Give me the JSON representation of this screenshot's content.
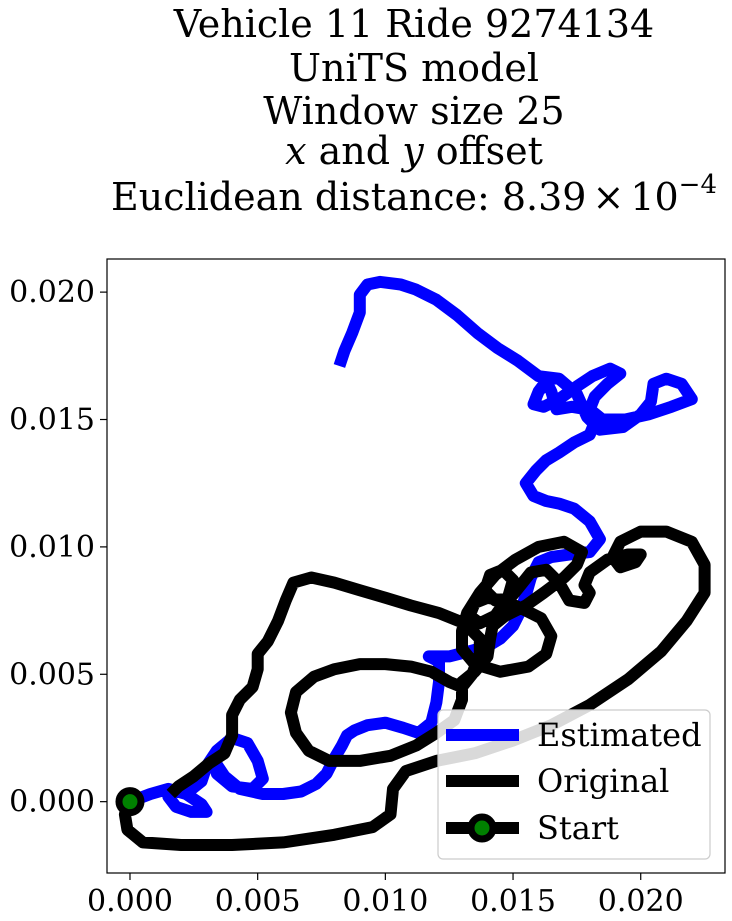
{
  "chart_data": {
    "type": "line",
    "title_lines": [
      "Vehicle 11 Ride 9274134",
      "UniTS model",
      "Window size 25",
      "x and y offset",
      "Euclidean distance: 8.39 × 10⁻⁴"
    ],
    "title_math": {
      "line4": {
        "var1": "x",
        "mid": " and ",
        "var2": "y",
        "tail": " offset"
      },
      "line5": {
        "prefix": "Euclidean distance: ",
        "mantissa": "8.39",
        "times": "×",
        "base": "10",
        "exponent": "−4"
      }
    },
    "xlabel": "",
    "ylabel": "",
    "xlim": [
      -0.0009,
      0.0233
    ],
    "ylim": [
      -0.0028,
      0.0213
    ],
    "x_ticks": [
      0.0,
      0.005,
      0.01,
      0.015,
      0.02
    ],
    "x_tick_labels": [
      "0.000",
      "0.005",
      "0.010",
      "0.015",
      "0.020"
    ],
    "y_ticks": [
      0.0,
      0.005,
      0.01,
      0.015,
      0.02
    ],
    "y_tick_labels": [
      "0.000",
      "0.005",
      "0.010",
      "0.015",
      "0.020"
    ],
    "grid": false,
    "legend_position": "bottom-right",
    "series": [
      {
        "name": "Estimated",
        "color": "#0000ff",
        "points": [
          [
            0.0,
            0.0
          ],
          [
            0.0008,
            0.0003
          ],
          [
            0.0015,
            0.0005
          ],
          [
            0.0022,
            0.0003
          ],
          [
            0.0028,
            -0.0001
          ],
          [
            0.003,
            -0.0004
          ],
          [
            0.0024,
            -0.0004
          ],
          [
            0.0018,
            -0.0002
          ],
          [
            0.0015,
            0.0002
          ],
          [
            0.0018,
            0.0004
          ],
          [
            0.0023,
            0.0004
          ],
          [
            0.0028,
            0.0008
          ],
          [
            0.003,
            0.0014
          ],
          [
            0.0034,
            0.002
          ],
          [
            0.004,
            0.0025
          ],
          [
            0.0046,
            0.0023
          ],
          [
            0.005,
            0.0016
          ],
          [
            0.0052,
            0.0009
          ],
          [
            0.0048,
            0.0005
          ],
          [
            0.004,
            0.0006
          ],
          [
            0.0034,
            0.0011
          ],
          [
            0.0033,
            0.0016
          ],
          [
            0.0037,
            0.001
          ],
          [
            0.0043,
            0.0005
          ],
          [
            0.0052,
            0.0003
          ],
          [
            0.006,
            0.0003
          ],
          [
            0.0067,
            0.0004
          ],
          [
            0.0073,
            0.0007
          ],
          [
            0.0077,
            0.0011
          ],
          [
            0.008,
            0.0017
          ],
          [
            0.0083,
            0.0022
          ],
          [
            0.0085,
            0.0026
          ],
          [
            0.0088,
            0.0028
          ],
          [
            0.0093,
            0.003
          ],
          [
            0.01,
            0.0031
          ],
          [
            0.0107,
            0.0029
          ],
          [
            0.0113,
            0.0027
          ],
          [
            0.0118,
            0.0031
          ],
          [
            0.012,
            0.0039
          ],
          [
            0.0121,
            0.0047
          ],
          [
            0.0121,
            0.0055
          ],
          [
            0.0117,
            0.0057
          ],
          [
            0.0125,
            0.0057
          ],
          [
            0.0133,
            0.0059
          ],
          [
            0.014,
            0.0061
          ],
          [
            0.0145,
            0.0064
          ],
          [
            0.015,
            0.0069
          ],
          [
            0.0153,
            0.0075
          ],
          [
            0.0155,
            0.0081
          ],
          [
            0.0157,
            0.0088
          ],
          [
            0.016,
            0.0094
          ],
          [
            0.0165,
            0.0096
          ],
          [
            0.0172,
            0.0097
          ],
          [
            0.018,
            0.0098
          ],
          [
            0.0184,
            0.0103
          ],
          [
            0.018,
            0.011
          ],
          [
            0.0174,
            0.0115
          ],
          [
            0.0168,
            0.0117
          ],
          [
            0.0163,
            0.0118
          ],
          [
            0.0158,
            0.012
          ],
          [
            0.0155,
            0.0125
          ],
          [
            0.0159,
            0.013
          ],
          [
            0.0163,
            0.0134
          ],
          [
            0.0168,
            0.0137
          ],
          [
            0.0174,
            0.0141
          ],
          [
            0.018,
            0.0144
          ],
          [
            0.0182,
            0.0149
          ],
          [
            0.0179,
            0.0154
          ],
          [
            0.0173,
            0.0155
          ],
          [
            0.0167,
            0.0154
          ],
          [
            0.0165,
            0.0161
          ],
          [
            0.0163,
            0.0165
          ],
          [
            0.016,
            0.0161
          ],
          [
            0.0158,
            0.0156
          ],
          [
            0.0162,
            0.0155
          ],
          [
            0.0168,
            0.0158
          ],
          [
            0.0175,
            0.0163
          ],
          [
            0.0181,
            0.0167
          ],
          [
            0.0188,
            0.017
          ],
          [
            0.0192,
            0.0168
          ],
          [
            0.0187,
            0.0164
          ],
          [
            0.0182,
            0.0159
          ],
          [
            0.018,
            0.0154
          ],
          [
            0.0185,
            0.015
          ],
          [
            0.0194,
            0.015
          ],
          [
            0.0203,
            0.0152
          ],
          [
            0.0212,
            0.0155
          ],
          [
            0.022,
            0.0158
          ],
          [
            0.0216,
            0.0164
          ],
          [
            0.021,
            0.0166
          ],
          [
            0.0205,
            0.0164
          ],
          [
            0.0204,
            0.0157
          ],
          [
            0.02,
            0.0152
          ],
          [
            0.0193,
            0.0147
          ],
          [
            0.0184,
            0.0146
          ],
          [
            0.0179,
            0.0151
          ],
          [
            0.0175,
            0.016
          ],
          [
            0.0168,
            0.0166
          ],
          [
            0.016,
            0.0167
          ],
          [
            0.0152,
            0.0173
          ],
          [
            0.0144,
            0.0178
          ],
          [
            0.0136,
            0.0184
          ],
          [
            0.0128,
            0.0191
          ],
          [
            0.012,
            0.0197
          ],
          [
            0.0112,
            0.0201
          ],
          [
            0.0106,
            0.0203
          ],
          [
            0.0098,
            0.0204
          ],
          [
            0.0093,
            0.0203
          ],
          [
            0.009,
            0.0199
          ],
          [
            0.009,
            0.0192
          ],
          [
            0.0087,
            0.0184
          ],
          [
            0.0084,
            0.0177
          ],
          [
            0.0082,
            0.0171
          ]
        ]
      },
      {
        "name": "Original",
        "color": "#000000",
        "points": [
          [
            0.0,
            0.0
          ],
          [
            -0.0002,
            -0.0005
          ],
          [
            -0.0001,
            -0.0011
          ],
          [
            0.0005,
            -0.0016
          ],
          [
            0.002,
            -0.0017
          ],
          [
            0.004,
            -0.0017
          ],
          [
            0.006,
            -0.0016
          ],
          [
            0.008,
            -0.0013
          ],
          [
            0.0095,
            -0.001
          ],
          [
            0.0102,
            -0.0005
          ],
          [
            0.0103,
            0.0005
          ],
          [
            0.0108,
            0.0012
          ],
          [
            0.012,
            0.0016
          ],
          [
            0.0135,
            0.0019
          ],
          [
            0.015,
            0.0024
          ],
          [
            0.0165,
            0.003
          ],
          [
            0.018,
            0.0038
          ],
          [
            0.0195,
            0.0048
          ],
          [
            0.0208,
            0.0059
          ],
          [
            0.0218,
            0.0071
          ],
          [
            0.0225,
            0.0082
          ],
          [
            0.0225,
            0.0093
          ],
          [
            0.022,
            0.0102
          ],
          [
            0.021,
            0.0106
          ],
          [
            0.02,
            0.0106
          ],
          [
            0.0192,
            0.0102
          ],
          [
            0.0189,
            0.0096
          ],
          [
            0.0192,
            0.0092
          ],
          [
            0.0198,
            0.0094
          ],
          [
            0.02,
            0.0097
          ],
          [
            0.0195,
            0.0097
          ],
          [
            0.0187,
            0.0095
          ],
          [
            0.018,
            0.009
          ],
          [
            0.0178,
            0.0085
          ],
          [
            0.018,
            0.0082
          ],
          [
            0.0178,
            0.0078
          ],
          [
            0.0172,
            0.0079
          ],
          [
            0.0168,
            0.0086
          ],
          [
            0.0163,
            0.0091
          ],
          [
            0.0157,
            0.009
          ],
          [
            0.0153,
            0.0085
          ],
          [
            0.0149,
            0.008
          ],
          [
            0.0143,
            0.0079
          ],
          [
            0.0139,
            0.0083
          ],
          [
            0.0141,
            0.0089
          ],
          [
            0.0146,
            0.0091
          ],
          [
            0.015,
            0.0087
          ],
          [
            0.0148,
            0.008
          ],
          [
            0.0143,
            0.0073
          ],
          [
            0.0137,
            0.007
          ],
          [
            0.0133,
            0.0073
          ],
          [
            0.0135,
            0.0078
          ],
          [
            0.014,
            0.008
          ],
          [
            0.0146,
            0.0079
          ],
          [
            0.0153,
            0.0076
          ],
          [
            0.0161,
            0.0072
          ],
          [
            0.0165,
            0.0065
          ],
          [
            0.0163,
            0.0058
          ],
          [
            0.0156,
            0.0053
          ],
          [
            0.0145,
            0.0051
          ],
          [
            0.0135,
            0.0054
          ],
          [
            0.013,
            0.006
          ],
          [
            0.013,
            0.0067
          ],
          [
            0.0132,
            0.0074
          ],
          [
            0.0137,
            0.0082
          ],
          [
            0.0143,
            0.0089
          ],
          [
            0.0151,
            0.0095
          ],
          [
            0.016,
            0.01
          ],
          [
            0.017,
            0.0102
          ],
          [
            0.0177,
            0.0098
          ],
          [
            0.0175,
            0.0093
          ],
          [
            0.017,
            0.0088
          ],
          [
            0.0162,
            0.0082
          ],
          [
            0.0155,
            0.0077
          ],
          [
            0.0147,
            0.0073
          ],
          [
            0.0142,
            0.0069
          ],
          [
            0.0141,
            0.0064
          ],
          [
            0.014,
            0.0057
          ],
          [
            0.0135,
            0.0051
          ],
          [
            0.013,
            0.0047
          ],
          [
            0.013,
            0.004
          ],
          [
            0.0127,
            0.0032
          ],
          [
            0.012,
            0.0027
          ],
          [
            0.0112,
            0.0022
          ],
          [
            0.0102,
            0.0018
          ],
          [
            0.009,
            0.0016
          ],
          [
            0.0078,
            0.0016
          ],
          [
            0.007,
            0.002
          ],
          [
            0.0065,
            0.0027
          ],
          [
            0.0063,
            0.0035
          ],
          [
            0.0065,
            0.0043
          ],
          [
            0.0072,
            0.0049
          ],
          [
            0.008,
            0.0052
          ],
          [
            0.009,
            0.0054
          ],
          [
            0.01,
            0.0054
          ],
          [
            0.011,
            0.0053
          ],
          [
            0.0118,
            0.0051
          ],
          [
            0.0125,
            0.0047
          ],
          [
            0.013,
            0.0045
          ],
          [
            0.0134,
            0.005
          ],
          [
            0.0137,
            0.0058
          ],
          [
            0.0137,
            0.0064
          ],
          [
            0.0131,
            0.007
          ],
          [
            0.0121,
            0.0074
          ],
          [
            0.011,
            0.0077
          ],
          [
            0.01,
            0.008
          ],
          [
            0.009,
            0.0083
          ],
          [
            0.008,
            0.0086
          ],
          [
            0.0071,
            0.0088
          ],
          [
            0.0064,
            0.0086
          ],
          [
            0.0061,
            0.0079
          ],
          [
            0.0058,
            0.0071
          ],
          [
            0.0054,
            0.0063
          ],
          [
            0.005,
            0.0058
          ],
          [
            0.005,
            0.0052
          ],
          [
            0.0048,
            0.0045
          ],
          [
            0.0043,
            0.004
          ],
          [
            0.004,
            0.0034
          ],
          [
            0.004,
            0.0026
          ],
          [
            0.0037,
            0.0019
          ],
          [
            0.0031,
            0.0015
          ],
          [
            0.0025,
            0.001
          ],
          [
            0.0019,
            0.0006
          ],
          [
            0.0016,
            0.0003
          ]
        ]
      }
    ],
    "start_point": {
      "x": 0.0,
      "y": 0.0,
      "edge_color": "#000000",
      "face_color": "#008000"
    },
    "legend": [
      {
        "label": "Estimated",
        "color": "#0000ff",
        "marker": "line"
      },
      {
        "label": "Original",
        "color": "#000000",
        "marker": "line"
      },
      {
        "label": "Start",
        "color": "#000000",
        "marker": "line-with-circle",
        "marker_face": "#008000"
      }
    ]
  }
}
